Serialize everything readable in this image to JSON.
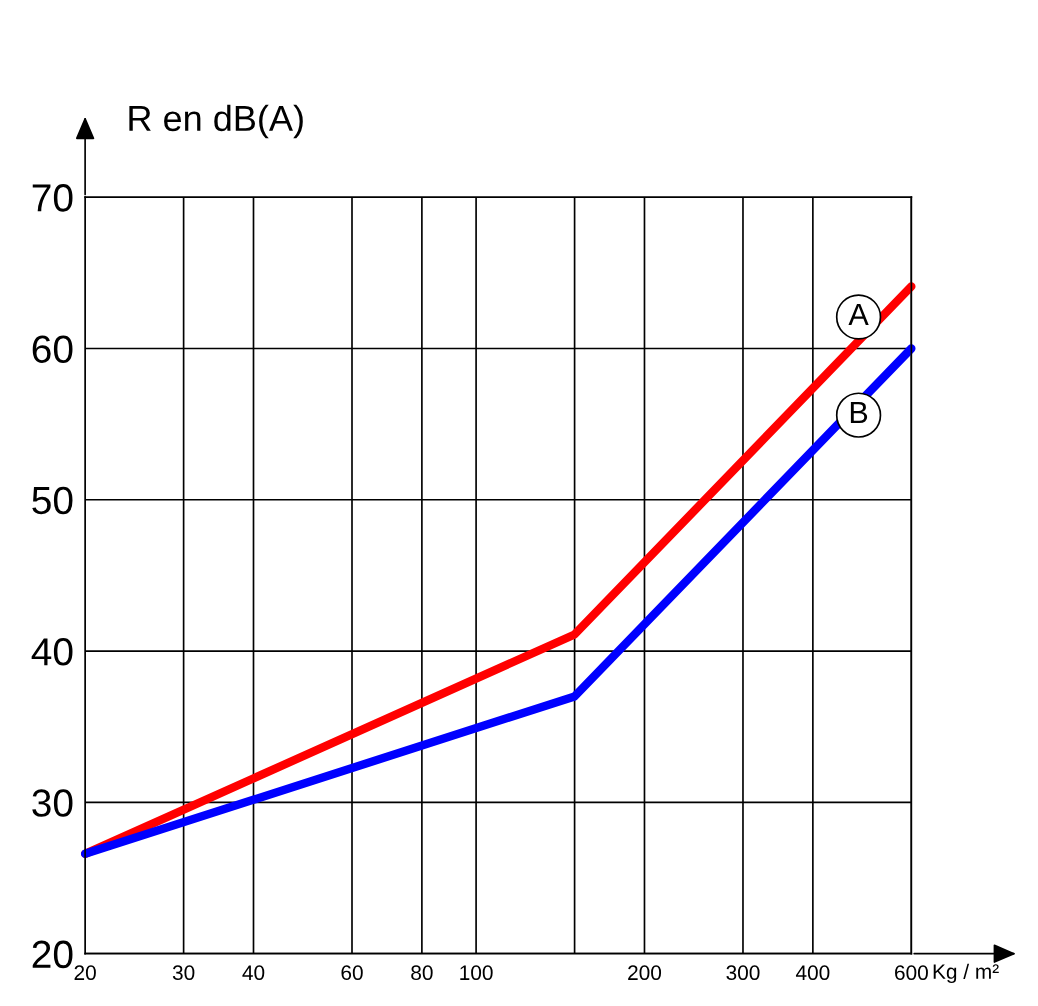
{
  "chart_data": {
    "type": "line",
    "ylabel": "R en dB(A)",
    "xlabel": "Kg / m²",
    "log": "x",
    "xlim": [
      20,
      600
    ],
    "xticks": [
      20,
      30,
      40,
      60,
      80,
      100,
      {
        "value": 150,
        "label": null
      },
      200,
      300,
      400,
      600
    ],
    "ylim": [
      20,
      70
    ],
    "yticks": [
      20,
      30,
      40,
      50,
      60,
      70
    ],
    "grid": true,
    "marker": "none",
    "line_style": "solid",
    "series": [
      {
        "name": "A",
        "color": "#ff0000",
        "x": [
          20,
          150,
          600
        ],
        "values": [
          26.6,
          41.1,
          64.1
        ]
      },
      {
        "name": "B",
        "color": "#0000ff",
        "x": [
          20,
          150,
          600
        ],
        "values": [
          26.6,
          37.0,
          60.0
        ]
      }
    ]
  }
}
